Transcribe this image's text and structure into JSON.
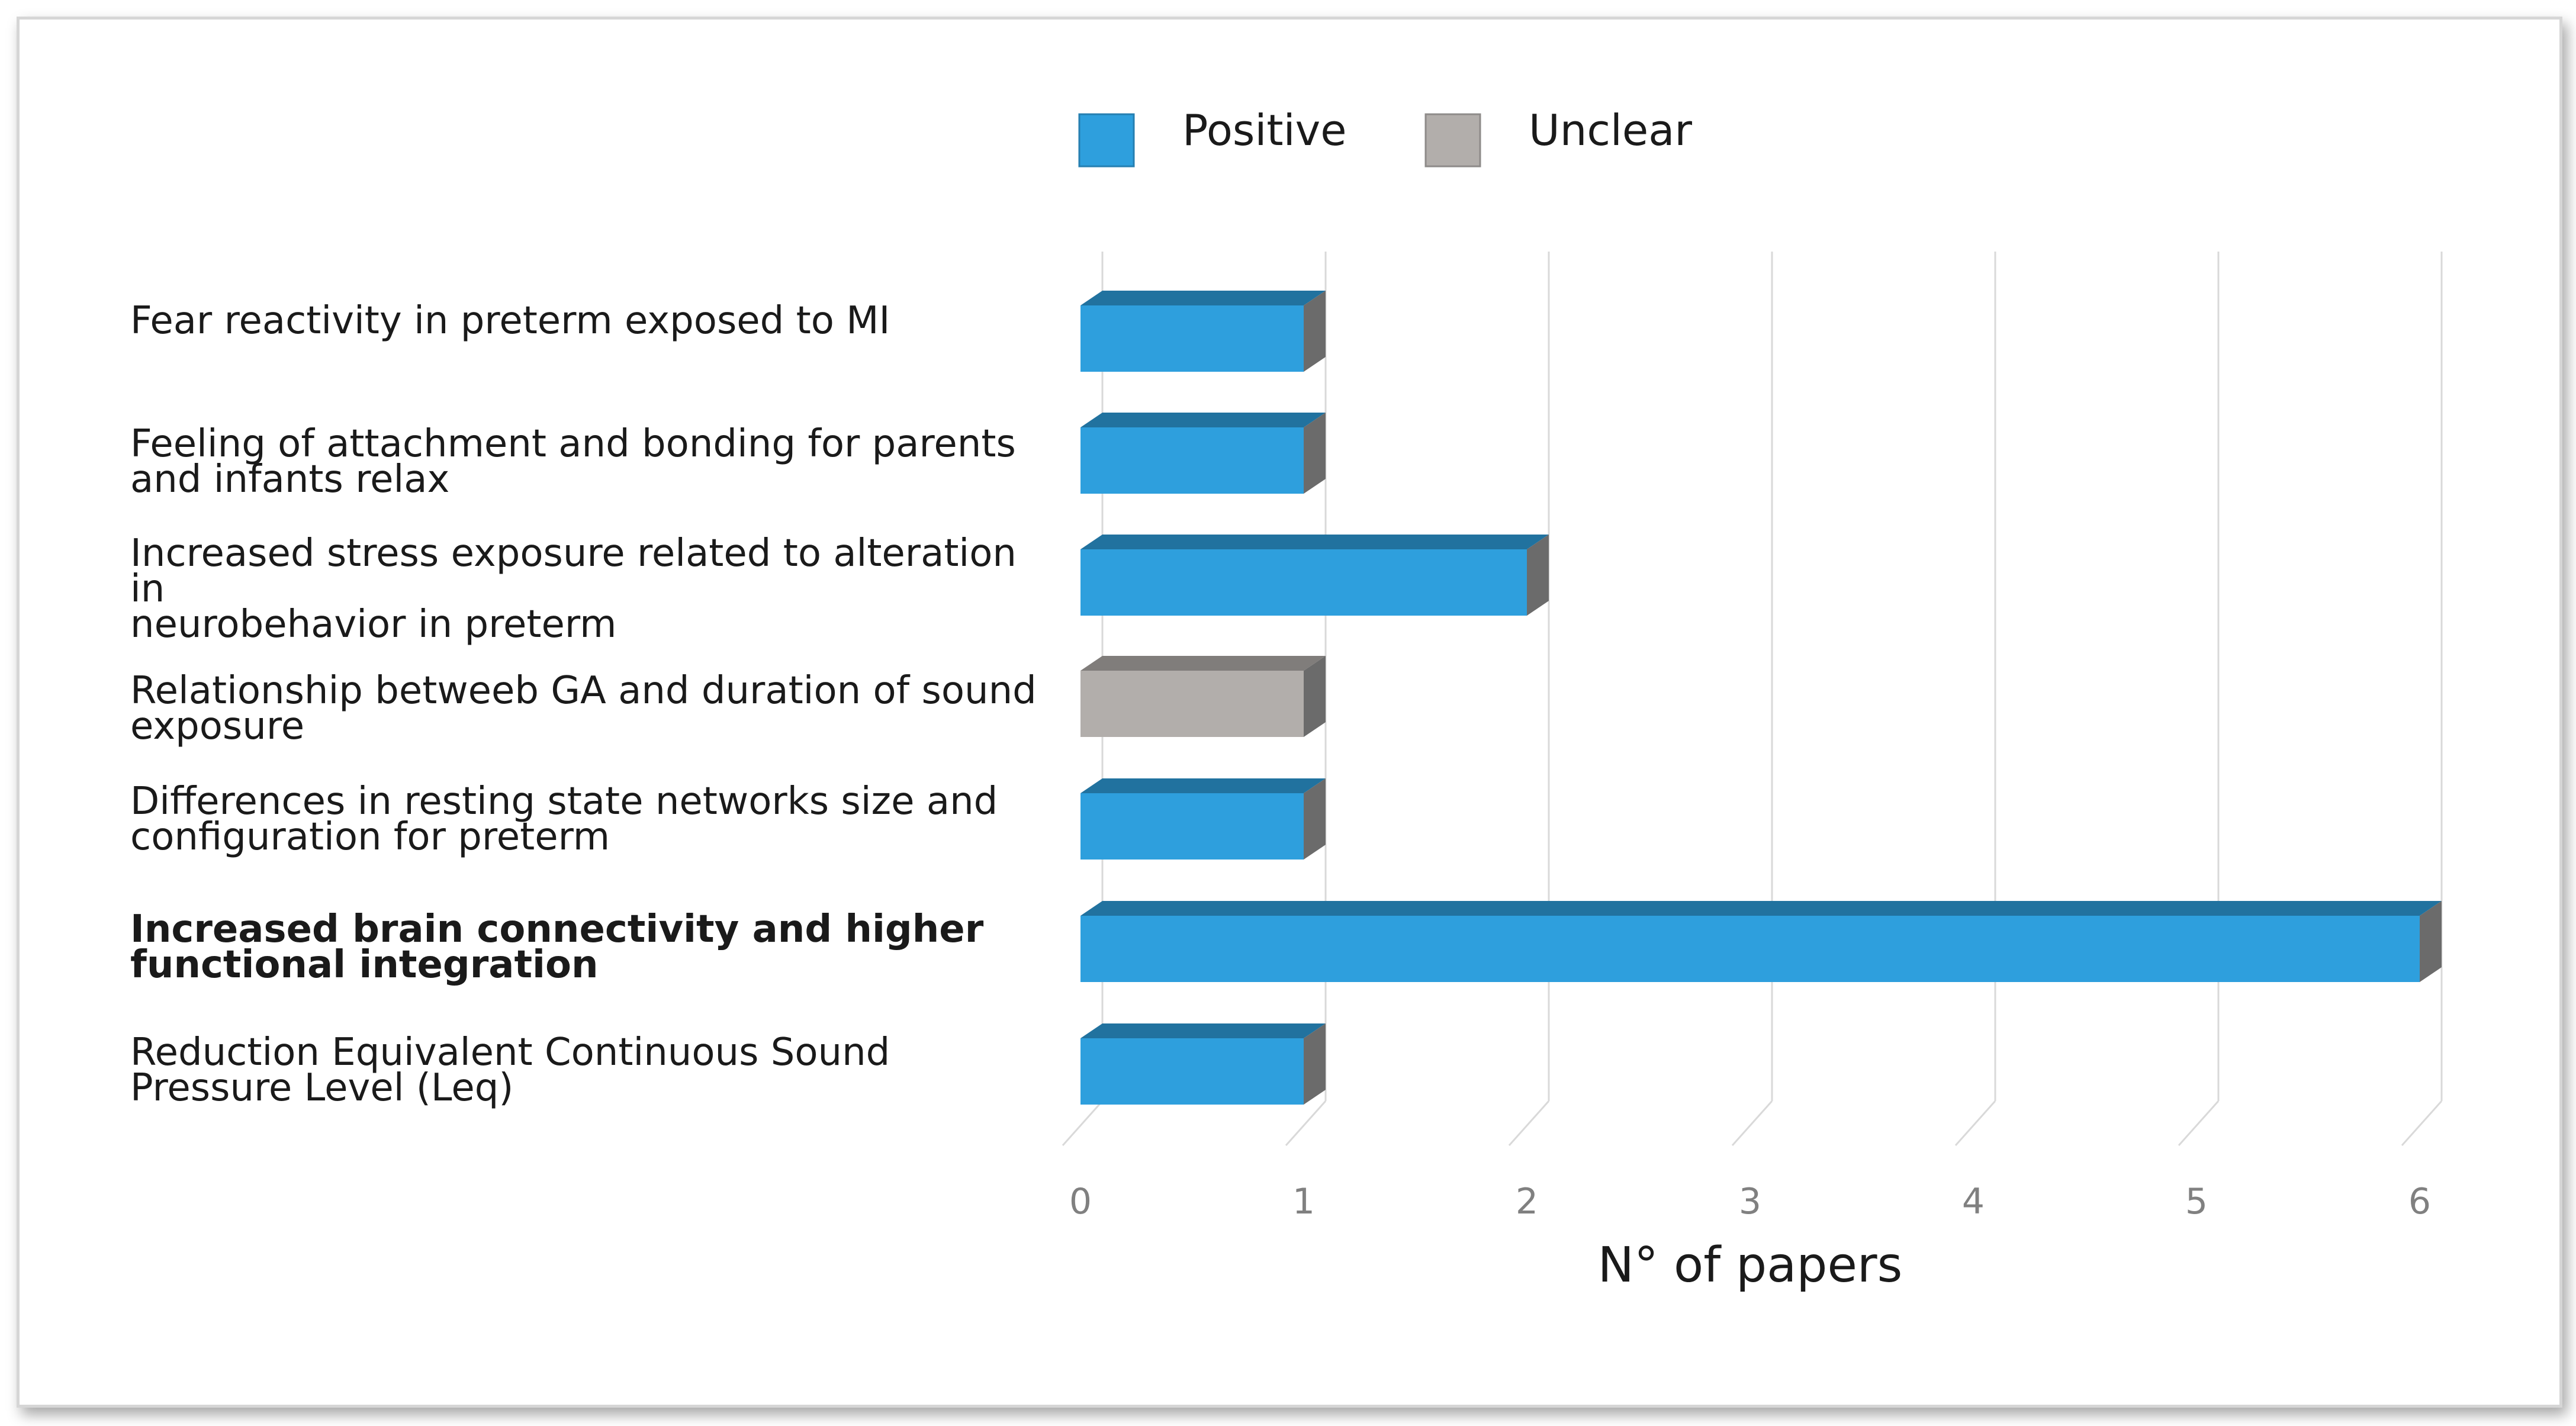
{
  "chart_data": {
    "type": "bar",
    "orientation": "horizontal",
    "three_d": true,
    "categories": [
      "Fear reactivity in preterm exposed to MI",
      "Feeling of attachment and bonding for parents\nand infants relax",
      "Increased stress exposure related to alteration in\nneurobehavior in preterm",
      "Relationship betweeb GA and duration of sound\nexposure",
      "Differences in resting state networks size and\nconfiguration for preterm",
      "Increased brain connectivity  and higher\nfunctional  integration",
      "Reduction Equivalent Continuous Sound\nPressure Level (Leq)"
    ],
    "bold_categories": [
      5
    ],
    "values": [
      1,
      1,
      2,
      1,
      1,
      6,
      1
    ],
    "bar_series": [
      "Positive",
      "Positive",
      "Positive",
      "Unclear",
      "Positive",
      "Positive",
      "Positive"
    ],
    "legend": [
      {
        "name": "Positive",
        "color": "#2e9fdd"
      },
      {
        "name": "Unclear",
        "color": "#b2aeab"
      }
    ],
    "legend_position": "top",
    "xlabel": "N° of papers",
    "xticks": [
      "0",
      "1",
      "2",
      "3",
      "4",
      "5",
      "6"
    ],
    "xlim": [
      0,
      6
    ],
    "grid": true
  }
}
